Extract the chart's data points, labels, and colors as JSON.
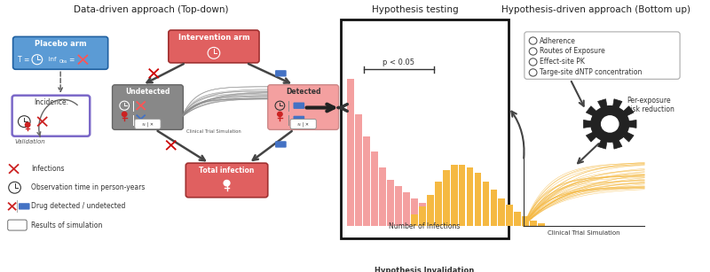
{
  "title_left": "Data-driven approach (Top-down)",
  "title_center": "Hypothesis testing",
  "title_right": "Hypothesis-driven approach (Bottom up)",
  "legend_items": [
    "Infections",
    "Observation time in person-years",
    "Drug detected / undetected",
    "Results of simulation"
  ],
  "hypothesis_list": [
    "Adherence",
    "Routes of Exposure",
    "Effect-site PK",
    "Targe-site dNTP concentration"
  ],
  "pink_bars": [
    0.95,
    0.72,
    0.58,
    0.48,
    0.38,
    0.3,
    0.26,
    0.22,
    0.18,
    0.15,
    0.12,
    0.1,
    0.08
  ],
  "orange_bars": [
    0.08,
    0.14,
    0.22,
    0.32,
    0.4,
    0.44,
    0.44,
    0.42,
    0.38,
    0.32,
    0.26,
    0.2,
    0.15,
    0.1,
    0.07,
    0.04,
    0.02
  ],
  "pink_color": "#F4A0A0",
  "orange_color": "#F5B942",
  "placebo_bg": "#5B9BD5",
  "placebo_ec": "#2060A0",
  "intervention_bg": "#E06060",
  "intervention_ec": "#A03030",
  "total_bg": "#E06060",
  "total_ec": "#A03030",
  "incidence_border": "#7B68C8",
  "undetected_bg": "#888888",
  "detected_bg": "#F4A0A0",
  "detected_ec": "#CC8888",
  "background": "#ffffff",
  "p_value_text": "p < 0.05",
  "xlabel_hist": "Number of Infections",
  "hyp_invalid": "Hypothesis Invalidation",
  "per_exposure": "Per-exposure\nrisk reduction",
  "clinical_trial_sim": "Clinical Trial Simulation",
  "validation_text": "Validation",
  "gray_curve_color": "#999999",
  "orange_curve_color": "#F5B942"
}
